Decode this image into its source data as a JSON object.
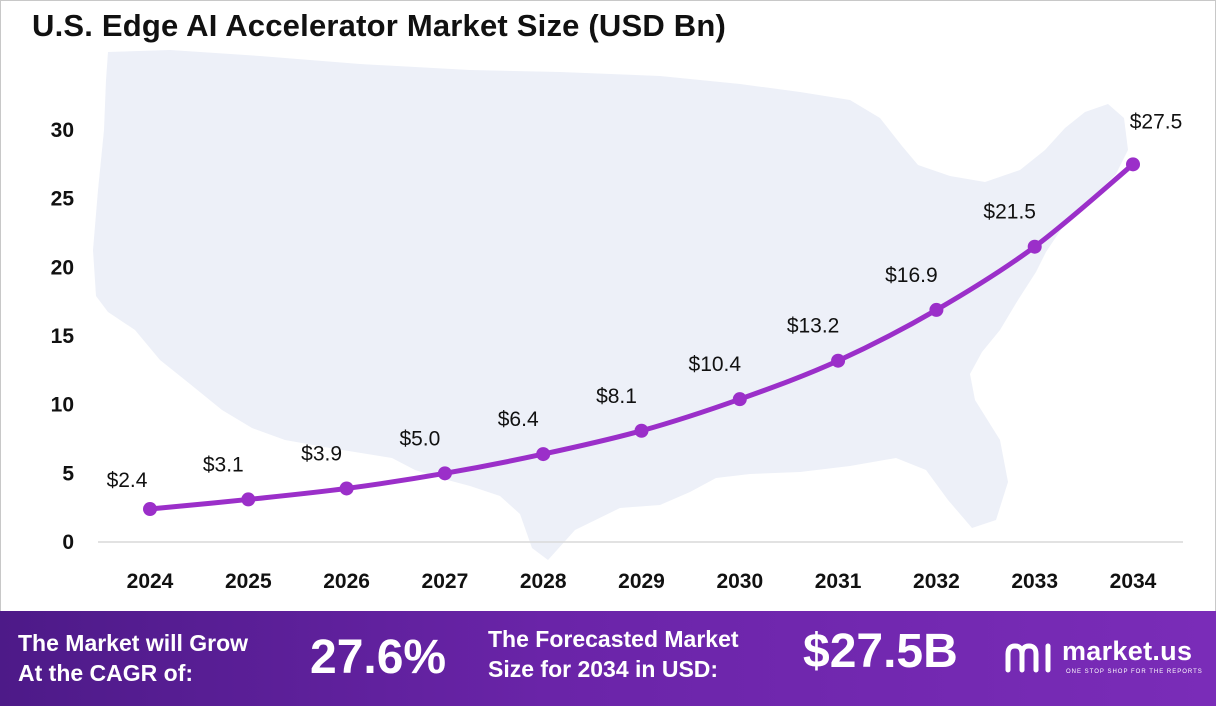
{
  "title": "U.S. Edge AI Accelerator Market Size (USD Bn)",
  "chart_data": {
    "type": "line",
    "x": [
      "2024",
      "2025",
      "2026",
      "2027",
      "2028",
      "2029",
      "2030",
      "2031",
      "2032",
      "2033",
      "2034"
    ],
    "values": [
      2.4,
      3.1,
      3.9,
      5.0,
      6.4,
      8.1,
      10.4,
      13.2,
      16.9,
      21.5,
      27.5
    ],
    "data_labels": [
      "$2.4",
      "$3.1",
      "$3.9",
      "$5.0",
      "$6.4",
      "$8.1",
      "$10.4",
      "$13.2",
      "$16.9",
      "$21.5",
      "$27.5"
    ],
    "y_ticks": [
      "0",
      "5",
      "10",
      "15",
      "20",
      "25",
      "30"
    ],
    "ylim": [
      0,
      30
    ],
    "grid": false,
    "line_color": "#9b2fc9",
    "background_image": "usa-map"
  },
  "footer": {
    "cagr_text_line1": "The Market will Grow",
    "cagr_text_line2": "At the CAGR of:",
    "cagr_value": "27.6%",
    "forecast_text_line1": "The Forecasted Market",
    "forecast_text_line2": "Size for 2034 in USD:",
    "forecast_value": "$27.5B",
    "logo_name": "market.us",
    "logo_tagline": "ONE STOP SHOP FOR THE REPORTS",
    "logo_icon": "market-us-logo-icon"
  }
}
